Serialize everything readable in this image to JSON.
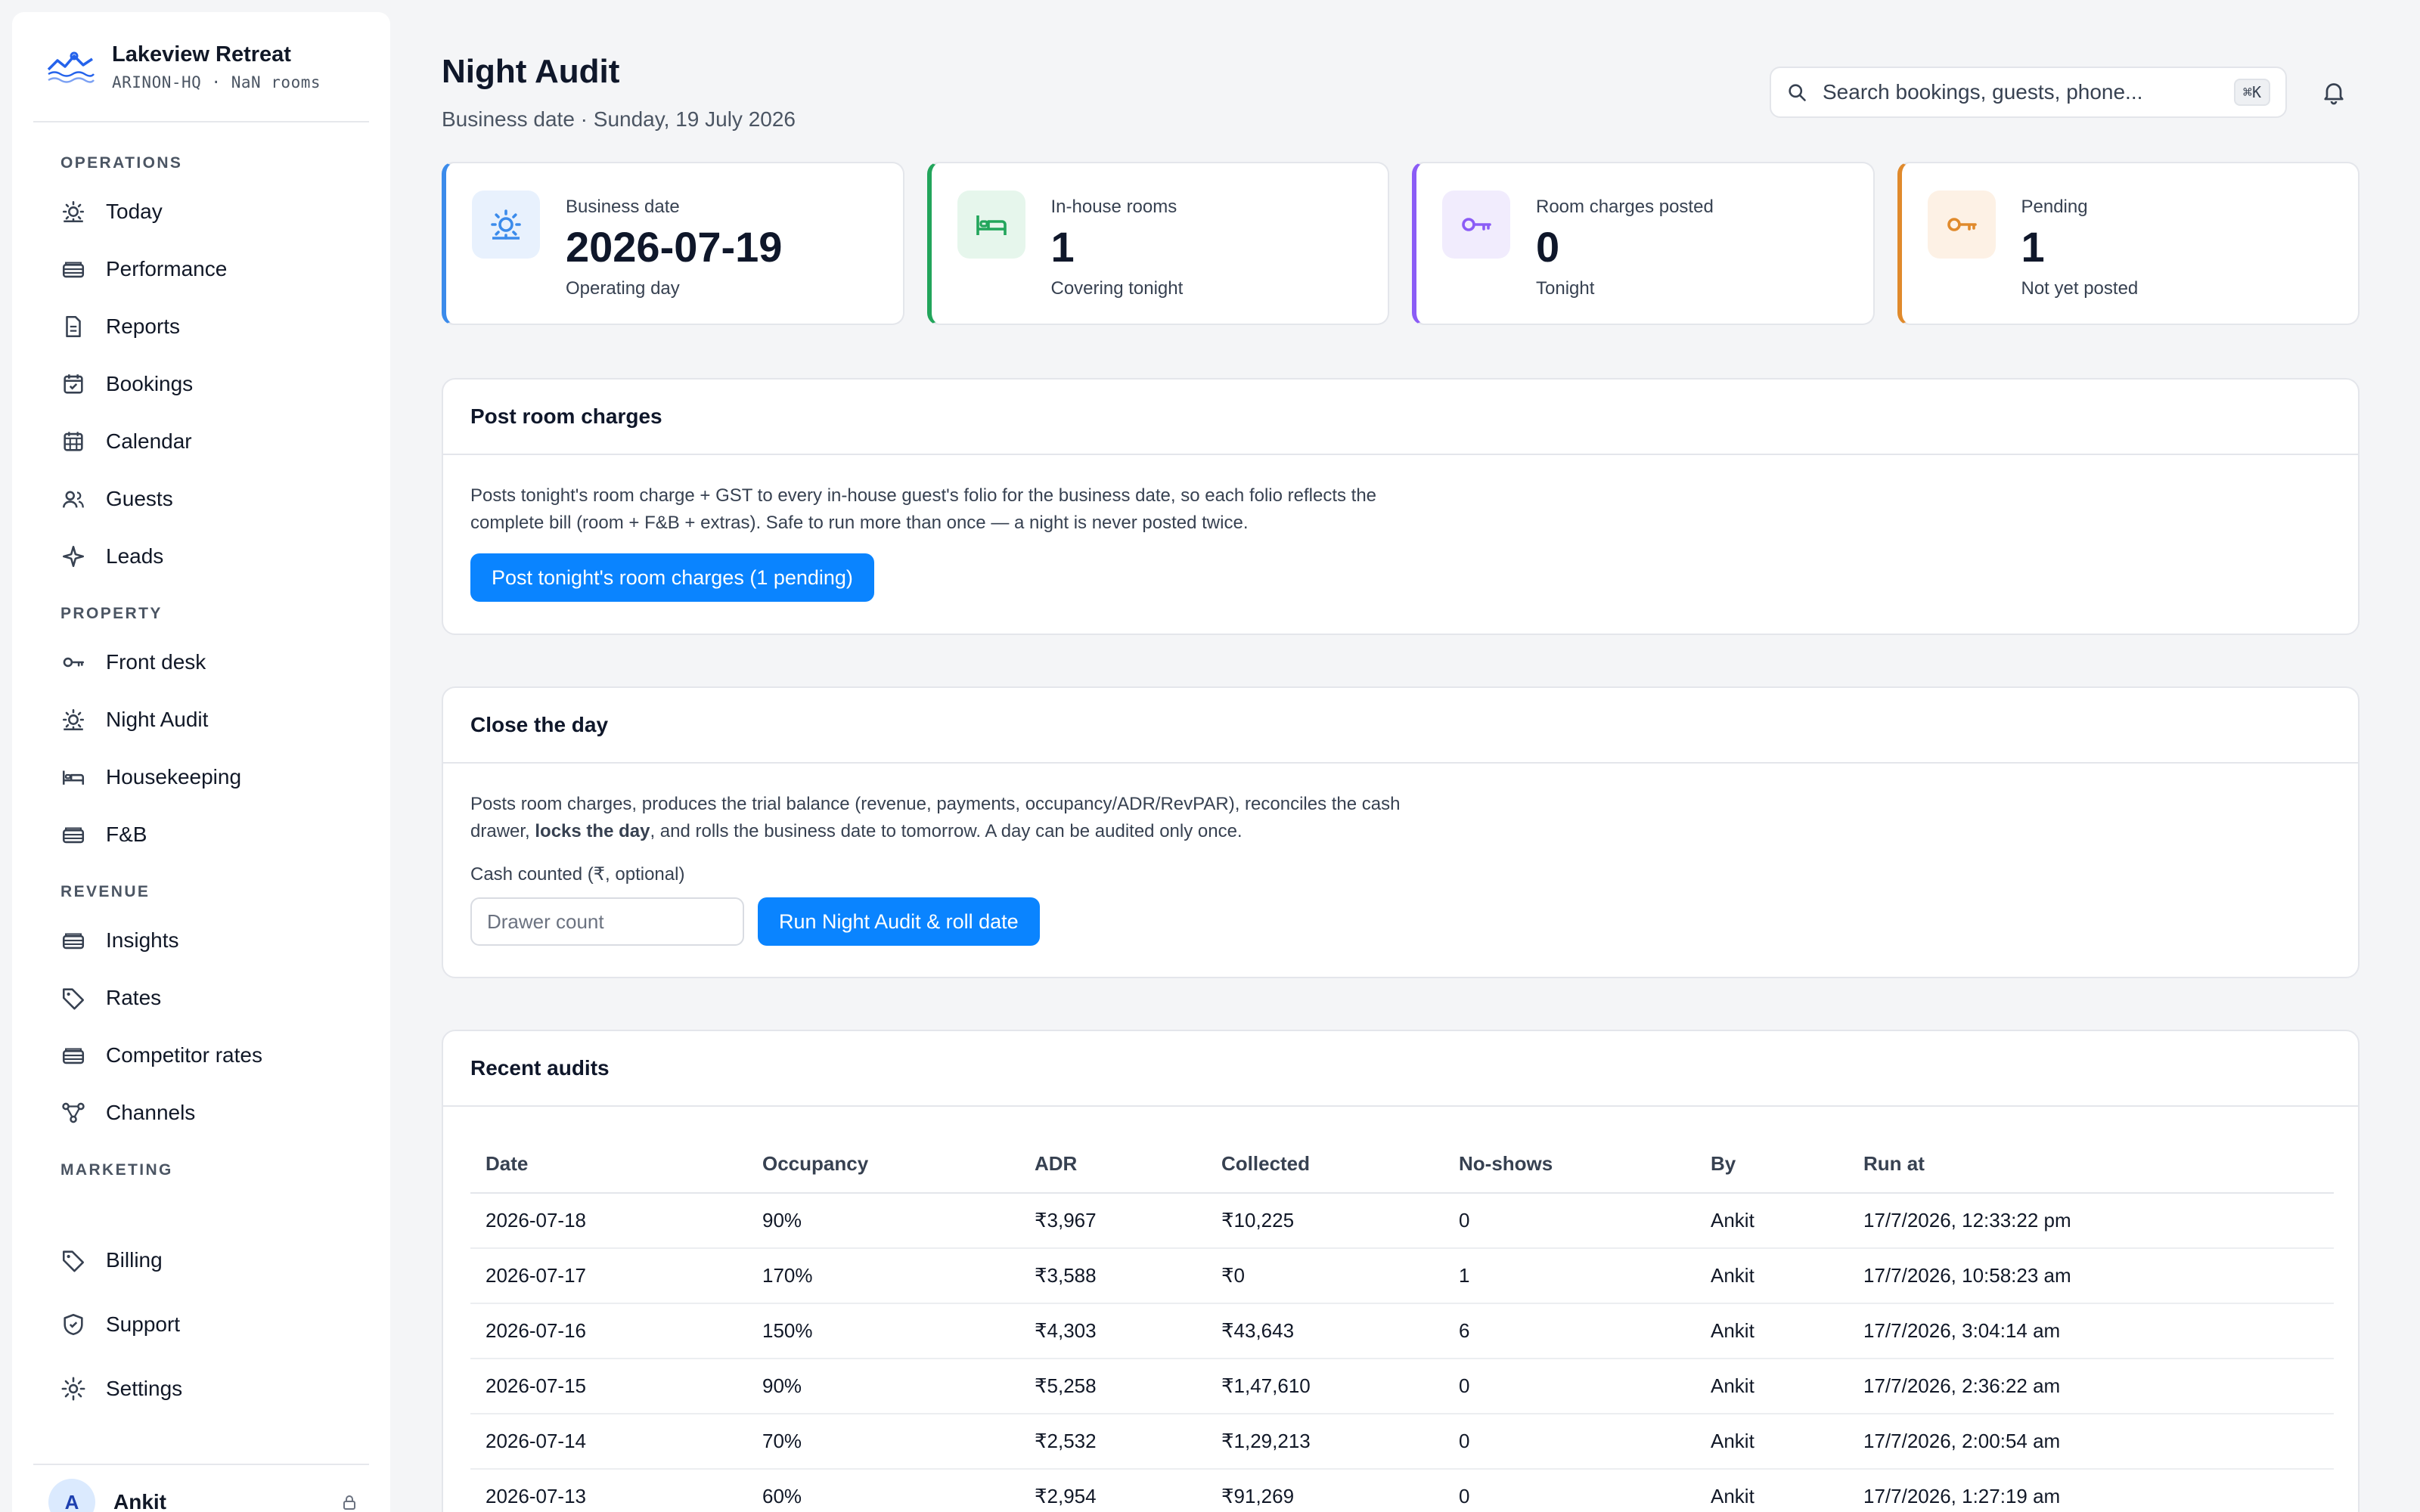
{
  "brand": {
    "name": "Lakeview Retreat",
    "sub": "ARINON-HQ · NaN rooms"
  },
  "nav": {
    "sections": [
      {
        "title": "OPERATIONS",
        "items": [
          {
            "label": "Today",
            "icon": "sun-icon"
          },
          {
            "label": "Performance",
            "icon": "money-icon"
          },
          {
            "label": "Reports",
            "icon": "document-icon"
          },
          {
            "label": "Bookings",
            "icon": "calendar-check-icon"
          },
          {
            "label": "Calendar",
            "icon": "calendar-grid-icon"
          },
          {
            "label": "Guests",
            "icon": "users-icon"
          },
          {
            "label": "Leads",
            "icon": "sparkle-icon"
          }
        ]
      },
      {
        "title": "PROPERTY",
        "items": [
          {
            "label": "Front desk",
            "icon": "key-icon"
          },
          {
            "label": "Night Audit",
            "icon": "sun-icon"
          },
          {
            "label": "Housekeeping",
            "icon": "bed-icon"
          },
          {
            "label": "F&B",
            "icon": "money-icon"
          }
        ]
      },
      {
        "title": "REVENUE",
        "items": [
          {
            "label": "Insights",
            "icon": "money-icon"
          },
          {
            "label": "Rates",
            "icon": "tag-icon"
          },
          {
            "label": "Competitor rates",
            "icon": "money-icon"
          },
          {
            "label": "Channels",
            "icon": "network-icon"
          }
        ]
      },
      {
        "title": "MARKETING",
        "items": []
      }
    ],
    "bottom_items": [
      {
        "label": "Billing",
        "icon": "tag-icon"
      },
      {
        "label": "Support",
        "icon": "shield-icon"
      },
      {
        "label": "Settings",
        "icon": "gear-icon"
      }
    ]
  },
  "user": {
    "initial": "A",
    "name": "Ankit"
  },
  "header": {
    "title": "Night Audit",
    "subtitle": "Business date · Sunday, 19 July 2026",
    "search_placeholder": "Search bookings, guests, phone...",
    "search_shortcut": "⌘K"
  },
  "stats": [
    {
      "label": "Business date",
      "value": "2026-07-19",
      "note": "Operating day",
      "color": "#3b8beb",
      "bg": "#e8f1fd",
      "icon": "sun-icon"
    },
    {
      "label": "In-house rooms",
      "value": "1",
      "note": "Covering tonight",
      "color": "#22a55b",
      "bg": "#e6f6ec",
      "icon": "bed-icon"
    },
    {
      "label": "Room charges posted",
      "value": "0",
      "note": "Tonight",
      "color": "#8b5cf6",
      "bg": "#f1ecfd",
      "icon": "key-icon"
    },
    {
      "label": "Pending",
      "value": "1",
      "note": "Not yet posted",
      "color": "#e08a2c",
      "bg": "#fdf1e5",
      "icon": "key-icon"
    }
  ],
  "post_charges": {
    "title": "Post room charges",
    "description": "Posts tonight's room charge + GST to every in-house guest's folio for the business date, so each folio reflects the complete bill (room + F&B + extras). Safe to run more than once — a night is never posted twice.",
    "button": "Post tonight's room charges (1 pending)"
  },
  "close_day": {
    "title": "Close the day",
    "desc_before": "Posts room charges, produces the trial balance (revenue, payments, occupancy/ADR/RevPAR), reconciles the cash drawer, ",
    "desc_bold": "locks the day",
    "desc_after": ", and rolls the business date to tomorrow. A day can be audited only once.",
    "field_label": "Cash counted (₹, optional)",
    "field_placeholder": "Drawer count",
    "button": "Run Night Audit & roll date"
  },
  "recent": {
    "title": "Recent audits",
    "columns": [
      "Date",
      "Occupancy",
      "ADR",
      "Collected",
      "No-shows",
      "By",
      "Run at"
    ],
    "rows": [
      [
        "2026-07-18",
        "90%",
        "₹3,967",
        "₹10,225",
        "0",
        "Ankit",
        "17/7/2026, 12:33:22 pm"
      ],
      [
        "2026-07-17",
        "170%",
        "₹3,588",
        "₹0",
        "1",
        "Ankit",
        "17/7/2026, 10:58:23 am"
      ],
      [
        "2026-07-16",
        "150%",
        "₹4,303",
        "₹43,643",
        "6",
        "Ankit",
        "17/7/2026, 3:04:14 am"
      ],
      [
        "2026-07-15",
        "90%",
        "₹5,258",
        "₹1,47,610",
        "0",
        "Ankit",
        "17/7/2026, 2:36:22 am"
      ],
      [
        "2026-07-14",
        "70%",
        "₹2,532",
        "₹1,29,213",
        "0",
        "Ankit",
        "17/7/2026, 2:00:54 am"
      ],
      [
        "2026-07-13",
        "60%",
        "₹2,954",
        "₹91,269",
        "0",
        "Ankit",
        "17/7/2026, 1:27:19 am"
      ]
    ]
  }
}
